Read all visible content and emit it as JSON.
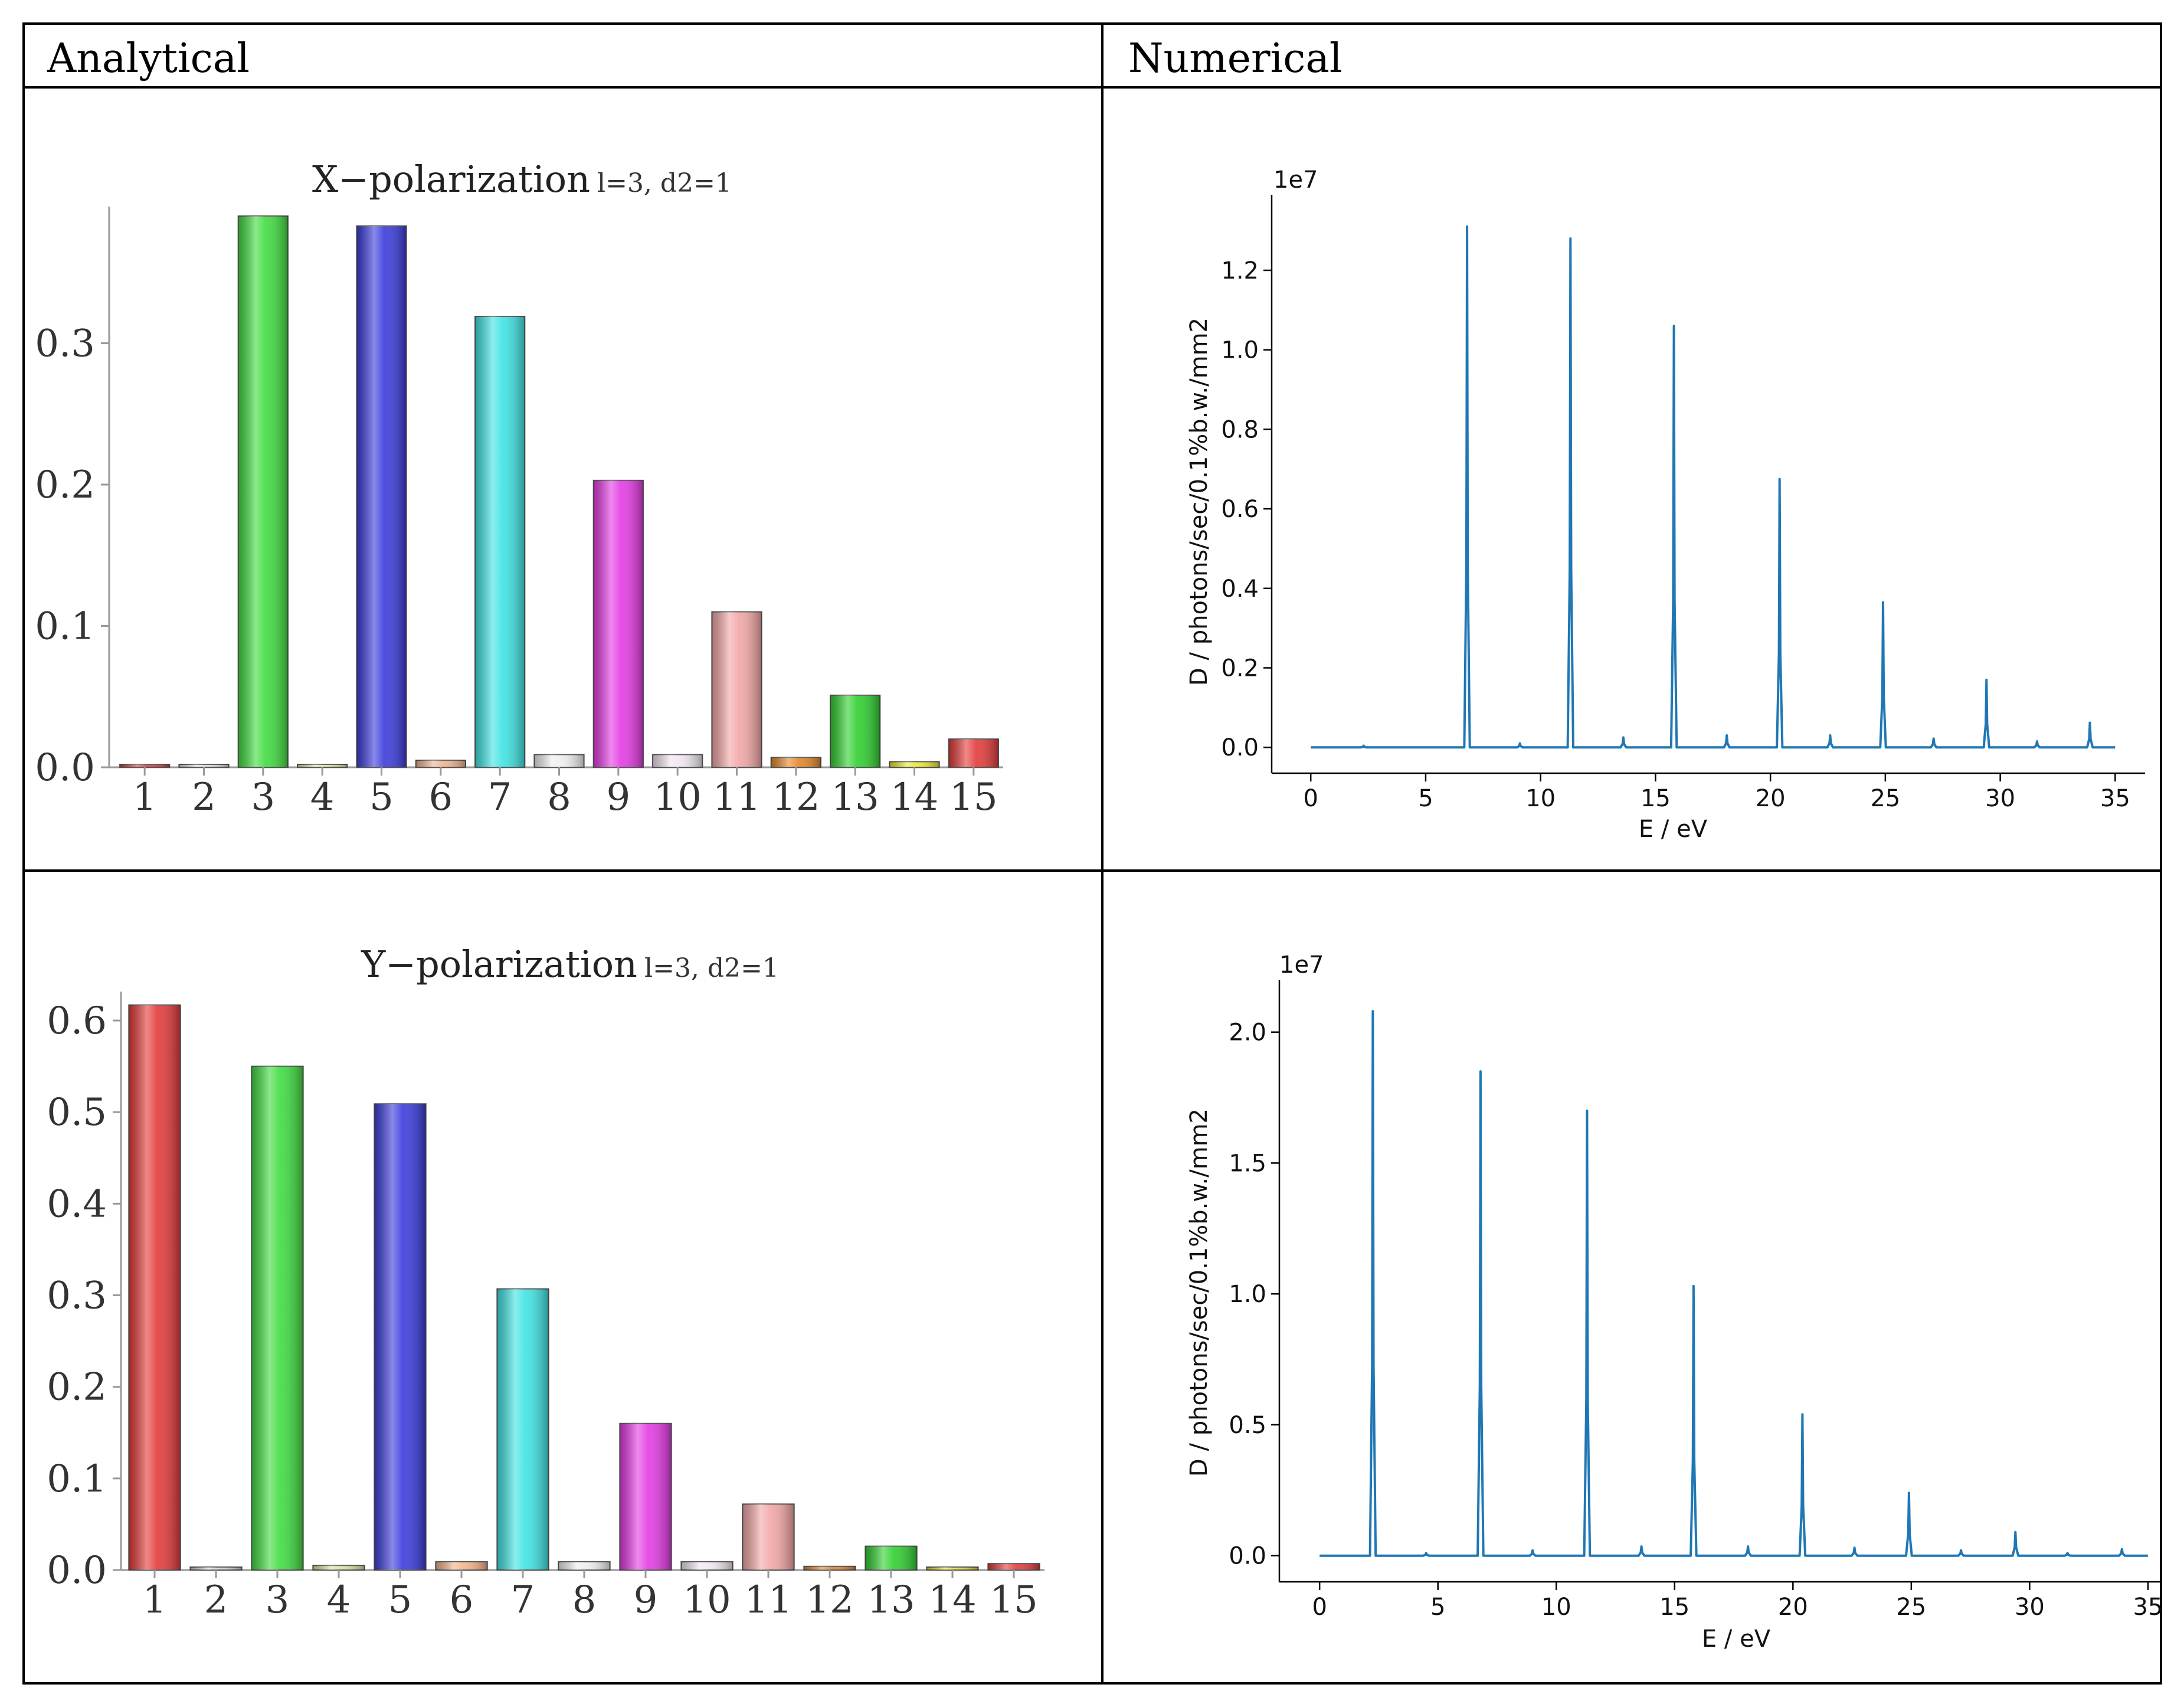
{
  "headers": {
    "left": "Analytical",
    "right": "Numerical"
  },
  "colors": {
    "bars": [
      "#e43a3a",
      "#d9d9d9",
      "#3fdc3f",
      "#e0e0a0",
      "#3b3bdc",
      "#f2b38a",
      "#3fe3e3",
      "#eeeeee",
      "#e43be4",
      "#f0e6f0",
      "#f2a6a6",
      "#e5862a",
      "#2fcf2f",
      "#e8e830"
    ],
    "line": "#1f77b4"
  },
  "chart_data": [
    {
      "type": "bar",
      "title": "X−polarization",
      "subtitle": "l=3, d2=1",
      "categories": [
        "1",
        "2",
        "3",
        "4",
        "5",
        "6",
        "7",
        "8",
        "9",
        "10",
        "11",
        "12",
        "13",
        "14",
        "15"
      ],
      "values": [
        0.002,
        0.0,
        0.39,
        0.002,
        0.383,
        0.005,
        0.319,
        0.009,
        0.203,
        0.009,
        0.11,
        0.007,
        0.051,
        0.004,
        0.02
      ],
      "colors": [
        "#e43a3a",
        "#d9d9d9",
        "#3fdc3f",
        "#e0e0a0",
        "#3b3bdc",
        "#f2b38a",
        "#3fe3e3",
        "#eeeeee",
        "#e43be4",
        "#f0e6f0",
        "#f2a6a6",
        "#e5862a",
        "#2fcf2f",
        "#e8e830"
      ],
      "yticks": [
        "0.0",
        "0.1",
        "0.2",
        "0.3"
      ],
      "ylim": [
        0,
        0.39
      ]
    },
    {
      "type": "bar",
      "title": "Y−polarization",
      "subtitle": "l=3, d2=1",
      "categories": [
        "1",
        "2",
        "3",
        "4",
        "5",
        "6",
        "7",
        "8",
        "9",
        "10",
        "11",
        "12",
        "13",
        "14",
        "15"
      ],
      "values": [
        0.617,
        0.002,
        0.55,
        0.005,
        0.509,
        0.009,
        0.307,
        0.009,
        0.16,
        0.009,
        0.072,
        0.004,
        0.026,
        0.002,
        0.007
      ],
      "colors": [
        "#e43a3a",
        "#d9d9d9",
        "#3fdc3f",
        "#e0e0a0",
        "#3b3bdc",
        "#f2b38a",
        "#3fe3e3",
        "#eeeeee",
        "#e43be4",
        "#f0e6f0",
        "#f2a6a6",
        "#e5862a",
        "#2fcf2f",
        "#e8e830"
      ],
      "yticks": [
        "0.0",
        "0.1",
        "0.2",
        "0.3",
        "0.4",
        "0.5",
        "0.6"
      ],
      "ylim": [
        0,
        0.62
      ]
    },
    {
      "type": "line",
      "xlabel": "E / eV",
      "ylabel": "D / photons/sec/0.1%b.w./mm2",
      "exponent": "1e7",
      "xlim": [
        -1.7,
        36.3
      ],
      "ylim": [
        -0.065,
        1.39
      ],
      "xticks": [
        0,
        5,
        10,
        15,
        20,
        25,
        30,
        35
      ],
      "xtick_labels": [
        "0",
        "5",
        "10",
        "15",
        "20",
        "25",
        "30",
        "35"
      ],
      "yticks": [
        0,
        0.2,
        0.4,
        0.6,
        0.8,
        1.0,
        1.2
      ],
      "ytick_labels": [
        "0.0",
        "0.2",
        "0.4",
        "0.6",
        "0.8",
        "1.0",
        "1.2"
      ],
      "peaks": [
        {
          "x": 2.3,
          "y": 0.004
        },
        {
          "x": 6.8,
          "y": 1.31
        },
        {
          "x": 9.1,
          "y": 0.01
        },
        {
          "x": 11.3,
          "y": 1.28
        },
        {
          "x": 13.6,
          "y": 0.025
        },
        {
          "x": 15.8,
          "y": 1.06
        },
        {
          "x": 18.1,
          "y": 0.03
        },
        {
          "x": 20.4,
          "y": 0.675
        },
        {
          "x": 22.6,
          "y": 0.03
        },
        {
          "x": 24.9,
          "y": 0.365
        },
        {
          "x": 27.1,
          "y": 0.022
        },
        {
          "x": 29.4,
          "y": 0.17
        },
        {
          "x": 31.6,
          "y": 0.015
        },
        {
          "x": 33.9,
          "y": 0.062
        }
      ]
    },
    {
      "type": "line",
      "xlabel": "E / eV",
      "ylabel": "D / photons/sec/0.1%b.w./mm2",
      "exponent": "1e7",
      "xlim": [
        -1.7,
        35.5
      ],
      "ylim": [
        -0.1,
        2.2
      ],
      "xticks": [
        0,
        5,
        10,
        15,
        20,
        25,
        30,
        35
      ],
      "xtick_labels": [
        "0",
        "5",
        "10",
        "15",
        "20",
        "25",
        "30",
        "35"
      ],
      "yticks": [
        0,
        0.5,
        1.0,
        1.5,
        2.0
      ],
      "ytick_labels": [
        "0.0",
        "0.5",
        "1.0",
        "1.5",
        "2.0"
      ],
      "peaks": [
        {
          "x": 2.25,
          "y": 2.08
        },
        {
          "x": 4.5,
          "y": 0.01
        },
        {
          "x": 6.8,
          "y": 1.85
        },
        {
          "x": 9.0,
          "y": 0.02
        },
        {
          "x": 11.3,
          "y": 1.7
        },
        {
          "x": 13.6,
          "y": 0.035
        },
        {
          "x": 15.8,
          "y": 1.03
        },
        {
          "x": 18.1,
          "y": 0.035
        },
        {
          "x": 20.4,
          "y": 0.54
        },
        {
          "x": 22.6,
          "y": 0.03
        },
        {
          "x": 24.9,
          "y": 0.24
        },
        {
          "x": 27.1,
          "y": 0.02
        },
        {
          "x": 29.4,
          "y": 0.09
        },
        {
          "x": 31.6,
          "y": 0.01
        },
        {
          "x": 33.9,
          "y": 0.025
        }
      ]
    }
  ]
}
